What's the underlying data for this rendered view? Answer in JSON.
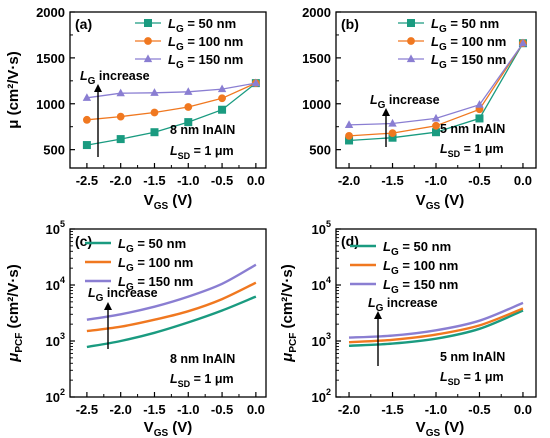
{
  "chart_data": [
    {
      "panel": "(a)",
      "type": "line",
      "markers": true,
      "xlabel": "V_GS (V)",
      "ylabel": "μ (cm²/V·s)",
      "xlim": [
        -2.75,
        0.15
      ],
      "ylim": [
        300,
        2000
      ],
      "xticks": [
        -2.5,
        -2.0,
        -1.5,
        -1.0,
        -0.5,
        0.0
      ],
      "xtick_labels": [
        "-2.5",
        "-2.0",
        "-1.5",
        "-1.0",
        "-0.5",
        "0.0"
      ],
      "yticks": [
        500,
        1000,
        1500,
        2000
      ],
      "ytick_labels": [
        "500",
        "1000",
        "1500",
        "2000"
      ],
      "x": [
        -2.5,
        -2.0,
        -1.5,
        -1.0,
        -0.5,
        0.0
      ],
      "series": [
        {
          "name": "L_G = 50 nm",
          "color": "#1a9b80",
          "marker": "square",
          "values": [
            550,
            615,
            690,
            800,
            935,
            1225
          ]
        },
        {
          "name": "L_G = 100 nm",
          "color": "#f07820",
          "marker": "circle",
          "values": [
            825,
            860,
            905,
            965,
            1060,
            1225
          ]
        },
        {
          "name": "L_G = 150 nm",
          "color": "#8a7ed2",
          "marker": "triangle",
          "values": [
            1065,
            1115,
            1120,
            1130,
            1160,
            1225
          ]
        }
      ],
      "legend_position": "top-right",
      "arrow_label": "L_G increase",
      "note_lines": [
        "8 nm InAlN",
        "L_SD = 1 μm"
      ]
    },
    {
      "panel": "(b)",
      "type": "line",
      "markers": true,
      "xlabel": "V_GS (V)",
      "ylabel": "",
      "xlim": [
        -2.15,
        0.15
      ],
      "ylim": [
        300,
        2000
      ],
      "xticks": [
        -2.0,
        -1.5,
        -1.0,
        -0.5,
        0.0
      ],
      "xtick_labels": [
        "-2.0",
        "-1.5",
        "-1.0",
        "-0.5",
        "0.0"
      ],
      "yticks": [
        500,
        1000,
        1500,
        2000
      ],
      "ytick_labels": [
        "500",
        "1000",
        "1500",
        "2000"
      ],
      "x": [
        -2.0,
        -1.5,
        -1.0,
        -0.5,
        0.0
      ],
      "series": [
        {
          "name": "L_G = 50 nm",
          "color": "#1a9b80",
          "marker": "square",
          "values": [
            600,
            630,
            690,
            840,
            1660
          ]
        },
        {
          "name": "L_G = 100 nm",
          "color": "#f07820",
          "marker": "circle",
          "values": [
            650,
            680,
            760,
            940,
            1660
          ]
        },
        {
          "name": "L_G = 150 nm",
          "color": "#8a7ed2",
          "marker": "triangle",
          "values": [
            770,
            785,
            840,
            990,
            1660
          ]
        }
      ],
      "legend_position": "top-right",
      "arrow_label": "L_G increase",
      "note_lines": [
        "5 nm InAlN",
        "L_SD = 1 μm"
      ]
    },
    {
      "panel": "(c)",
      "type": "line",
      "markers": false,
      "yscale": "log",
      "xlabel": "V_GS (V)",
      "ylabel": "μ_PCF (cm²/V·s)",
      "xlim": [
        -2.75,
        0.15
      ],
      "ylim": [
        100,
        100000
      ],
      "xticks": [
        -2.5,
        -2.0,
        -1.5,
        -1.0,
        -0.5,
        0.0
      ],
      "xtick_labels": [
        "-2.5",
        "-2.0",
        "-1.5",
        "-1.0",
        "-0.5",
        "0.0"
      ],
      "yticks": [
        100,
        1000,
        10000,
        100000
      ],
      "ytick_exponents": [
        "2",
        "3",
        "4",
        "5"
      ],
      "x": [
        -2.5,
        -2.0,
        -1.5,
        -1.0,
        -0.5,
        0.0
      ],
      "series": [
        {
          "name": "L_G = 50 nm",
          "color": "#1a9b80",
          "values": [
            780,
            1000,
            1400,
            2150,
            3500,
            6200
          ]
        },
        {
          "name": "L_G = 100 nm",
          "color": "#f07820",
          "values": [
            1500,
            1800,
            2400,
            3400,
            5600,
            11000
          ]
        },
        {
          "name": "L_G = 150 nm",
          "color": "#8a7ed2",
          "values": [
            2400,
            3000,
            4100,
            6200,
            10500,
            23000
          ]
        }
      ],
      "legend_position": "top",
      "arrow_label": "L_G increase",
      "note_lines": [
        "8 nm InAlN",
        "L_SD = 1 μm"
      ]
    },
    {
      "panel": "(d)",
      "type": "line",
      "markers": false,
      "yscale": "log",
      "xlabel": "V_GS (V)",
      "ylabel": "μ_PCF (cm²/V·s)",
      "xlim": [
        -2.15,
        0.15
      ],
      "ylim": [
        100,
        100000
      ],
      "xticks": [
        -2.0,
        -1.5,
        -1.0,
        -0.5,
        0.0
      ],
      "xtick_labels": [
        "-2.0",
        "-1.5",
        "-1.0",
        "-0.5",
        "0.0"
      ],
      "yticks": [
        100,
        1000,
        10000,
        100000
      ],
      "ytick_exponents": [
        "2",
        "3",
        "4",
        "5"
      ],
      "x": [
        -2.0,
        -1.5,
        -1.0,
        -0.5,
        0.0
      ],
      "series": [
        {
          "name": "L_G = 50 nm",
          "color": "#1a9b80",
          "values": [
            820,
            900,
            1100,
            1650,
            3500
          ]
        },
        {
          "name": "L_G = 100 nm",
          "color": "#f07820",
          "values": [
            950,
            1050,
            1300,
            1900,
            3800
          ]
        },
        {
          "name": "L_G = 150 nm",
          "color": "#8a7ed2",
          "values": [
            1150,
            1250,
            1550,
            2300,
            4800
          ]
        }
      ],
      "legend_position": "top-right",
      "arrow_label": "L_G increase",
      "note_lines": [
        "5 nm InAlN",
        "L_SD = 1 μm"
      ]
    }
  ]
}
